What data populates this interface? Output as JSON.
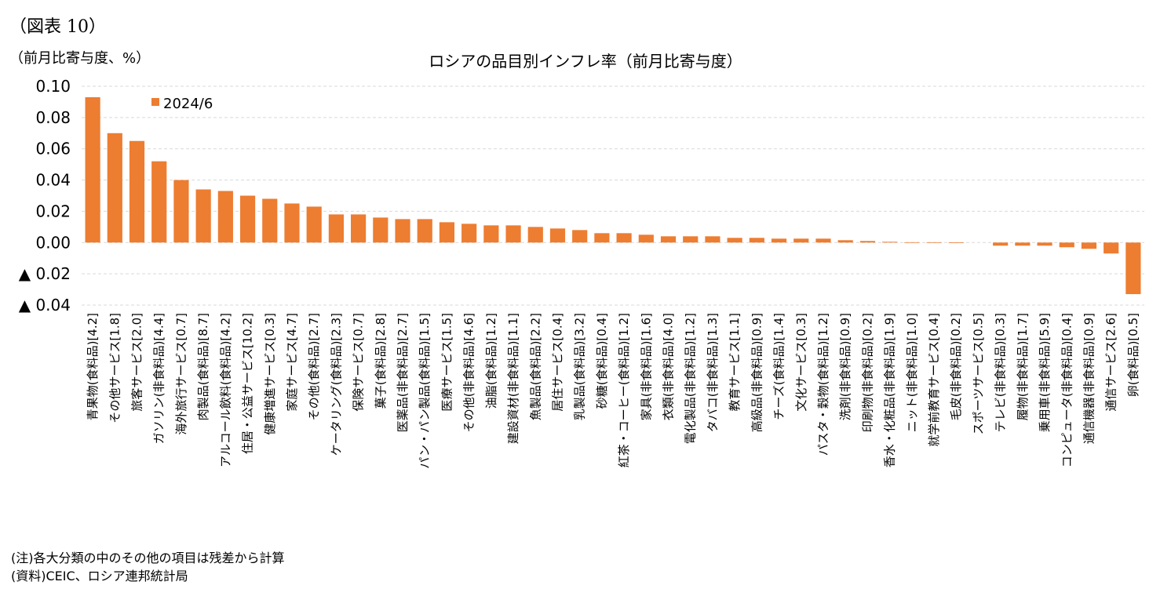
{
  "figure_label": "（図表 10）",
  "unit_label": "（前月比寄与度、%）",
  "footnotes": {
    "note": "(注)各大分類の中のその他の項目は残差から計算",
    "source": "(資料)CEIC、ロシア連邦統計局"
  },
  "chart_data": {
    "type": "bar",
    "title": "ロシアの品目別インフレ率（前月比寄与度）",
    "ylabel": "（前月比寄与度、%）",
    "xlabel": "",
    "ylim": [
      -0.04,
      0.1
    ],
    "yticks": [
      0.1,
      0.08,
      0.06,
      0.04,
      0.02,
      0.0,
      -0.02,
      -0.04
    ],
    "ytick_labels": [
      "0.10",
      "0.08",
      "0.06",
      "0.04",
      "0.02",
      "0.00",
      "▲ 0.02",
      "▲ 0.04"
    ],
    "grid": true,
    "legend_position": "top-left",
    "bar_color": "#ED7D31",
    "grid_color": "#D9D9D9",
    "series": [
      {
        "name": "2024/6",
        "values": [
          0.093,
          0.07,
          0.065,
          0.052,
          0.04,
          0.034,
          0.033,
          0.03,
          0.028,
          0.025,
          0.023,
          0.018,
          0.018,
          0.016,
          0.015,
          0.015,
          0.013,
          0.012,
          0.011,
          0.011,
          0.01,
          0.009,
          0.008,
          0.006,
          0.006,
          0.005,
          0.004,
          0.004,
          0.004,
          0.003,
          0.003,
          0.0025,
          0.0025,
          0.0025,
          0.0015,
          0.001,
          0.0005,
          0.0002,
          0.0002,
          0.0001,
          0.0,
          -0.002,
          -0.002,
          -0.002,
          -0.003,
          -0.004,
          -0.007,
          -0.033
        ]
      }
    ],
    "categories": [
      "青果物(食料品)[4.2]",
      "その他サービス[1.8]",
      "旅客サービス[2.0]",
      "ガソリン(非食料品)[4.4]",
      "海外旅行サービス[0.7]",
      "肉製品(食料品)[8.7]",
      "アルコール飲料(食料品)[4.2]",
      "住居・公益サービス[10.2]",
      "健康増進サービス[0.3]",
      "家庭サービス[4.7]",
      "その他(食料品)[2.7]",
      "ケータリング(食料品)[2.3]",
      "保険サービス[0.7]",
      "菓子(食料品)[2.8]",
      "医薬品(非食料品)[2.7]",
      "パン・パン製品(食料品)[1.5]",
      "医療サービス[1.5]",
      "その他(非食料品)[4.6]",
      "油脂(食料品)[1.2]",
      "建設資材(非食料品)[1.1]",
      "魚製品(食料品)[2.2]",
      "居住サービス[0.4]",
      "乳製品(食料品)[3.2]",
      "砂糖(食料品)[0.4]",
      "紅茶・コーヒー(食料品)[1.2]",
      "家具(非食料品)[1.6]",
      "衣類(非食料品)[4.0]",
      "電化製品(非食料品)[1.2]",
      "タバコ(非食料品)[1.3]",
      "教育サービス[1.1]",
      "高級品(非食料品)[0.9]",
      "チーズ(食料品)[1.4]",
      "文化サービス[0.3]",
      "パスタ・穀物(食料品)[1.2]",
      "洗剤(非食料品)[0.9]",
      "印刷物(非食料品)[0.2]",
      "香水・化粧品(非食料品)[1.9]",
      "ニット(非食料品)[1.0]",
      "就学前教育サービス[0.4]",
      "毛皮(非食料品)[0.2]",
      "スポーツサービス[0.5]",
      "テレビ(非食料品)[0.3]",
      "履物(非食料品)[1.7]",
      "乗用車(非食料品)[5.9]",
      "コンピュータ(非食料品)[0.4]",
      "通信機器(非食料品)[0.9]",
      "通信サービス[2.6]",
      "卵(食料品)[0.5]"
    ]
  }
}
